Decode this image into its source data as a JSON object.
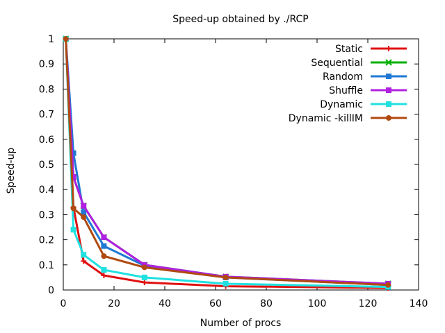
{
  "chart_data": {
    "type": "line",
    "title": "Speed-up obtained by ./RCP",
    "xlabel": "Number of procs",
    "ylabel": "Speed-up",
    "xlim": [
      0,
      140
    ],
    "ylim": [
      0,
      1
    ],
    "x_ticks": [
      "0",
      "20",
      "40",
      "60",
      "80",
      "100",
      "120",
      "140"
    ],
    "y_ticks": [
      "0",
      "0.1",
      "0.2",
      "0.3",
      "0.4",
      "0.5",
      "0.6",
      "0.7",
      "0.8",
      "0.9",
      "1"
    ],
    "legend_position": "top-right",
    "grid": false,
    "series": [
      {
        "name": "Static",
        "color": "#e01010",
        "marker": "plus",
        "x": [
          1,
          4,
          8,
          16,
          32,
          64,
          128
        ],
        "y": [
          1.0,
          0.33,
          0.115,
          0.058,
          0.03,
          0.015,
          0.008
        ]
      },
      {
        "name": "Sequential",
        "color": "#00b000",
        "marker": "cross",
        "x": [
          1,
          4,
          8,
          16,
          32,
          64,
          128
        ],
        "y": [
          1.0,
          0.45,
          0.335,
          0.21,
          0.1,
          0.053,
          0.025
        ]
      },
      {
        "name": "Random",
        "color": "#1f78d4",
        "marker": "square",
        "x": [
          1,
          4,
          8,
          16,
          32,
          64,
          128
        ],
        "y": [
          1.0,
          0.545,
          0.31,
          0.175,
          0.097,
          0.05,
          0.02
        ]
      },
      {
        "name": "Shuffle",
        "color": "#b020e0",
        "marker": "square",
        "x": [
          1,
          4,
          8,
          16,
          32,
          64,
          128
        ],
        "y": [
          1.0,
          0.45,
          0.335,
          0.21,
          0.1,
          0.053,
          0.025
        ]
      },
      {
        "name": "Dynamic",
        "color": "#20e0e0",
        "marker": "square",
        "x": [
          1,
          4,
          8,
          16,
          32,
          64,
          128
        ],
        "y": [
          1.0,
          0.24,
          0.14,
          0.08,
          0.05,
          0.025,
          0.012
        ]
      },
      {
        "name": "Dynamic -killIM",
        "color": "#b04a10",
        "marker": "circle",
        "x": [
          1,
          4,
          8,
          16,
          32,
          64,
          128
        ],
        "y": [
          1.0,
          0.325,
          0.29,
          0.135,
          0.09,
          0.05,
          0.02
        ]
      }
    ]
  }
}
